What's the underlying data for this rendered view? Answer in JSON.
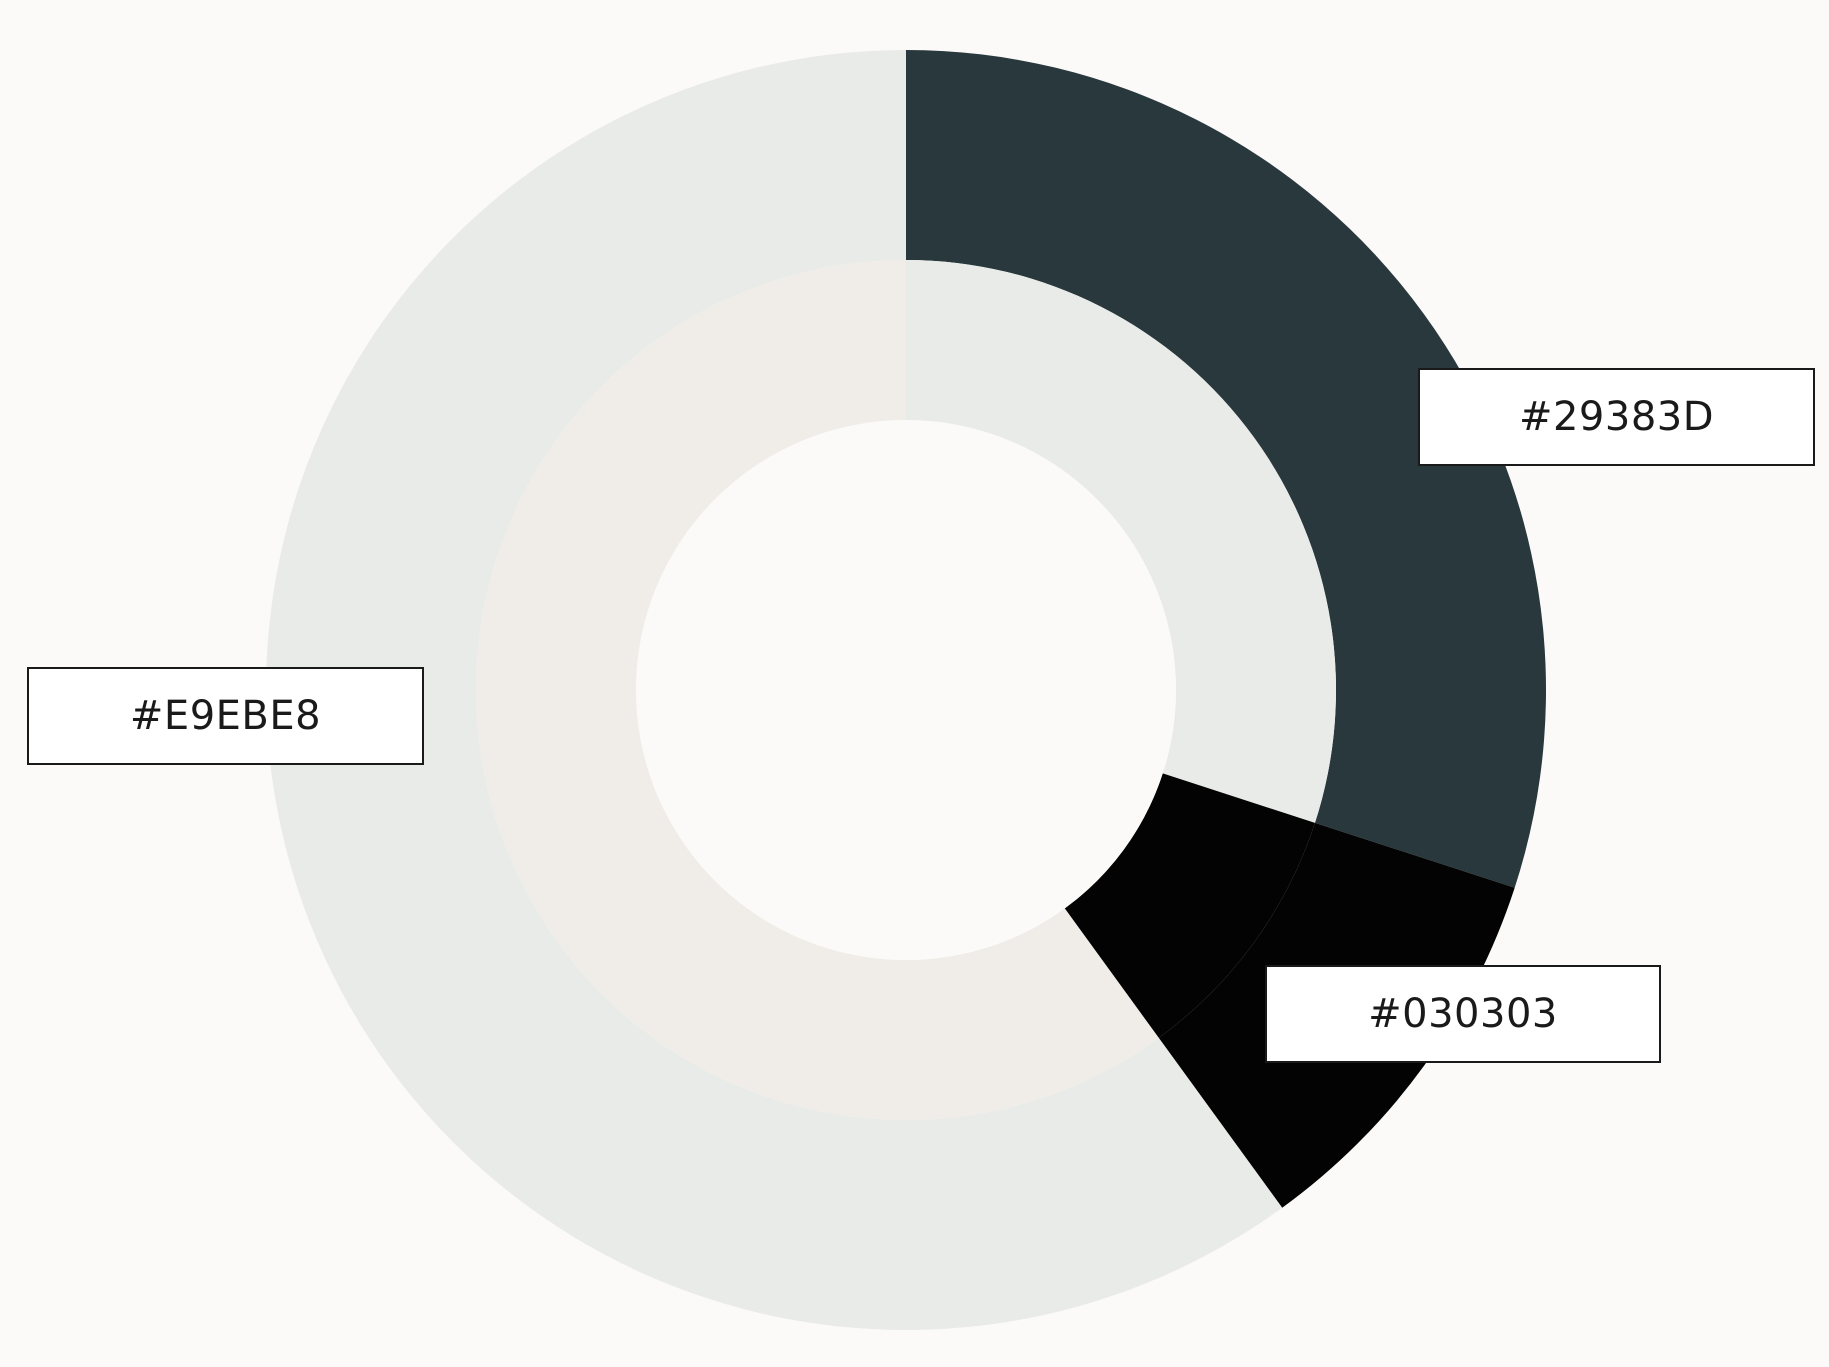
{
  "chart_data": {
    "type": "pie",
    "variant": "nested-donut",
    "title": "",
    "rings": [
      {
        "ring": "outer",
        "slices": [
          {
            "label": "#29383D",
            "value": 30,
            "color": "#29383D"
          },
          {
            "label": "#030303",
            "value": 10,
            "color": "#030303"
          },
          {
            "label": "#E9EBE8",
            "value": 60,
            "color": "#E9EBE8"
          }
        ]
      },
      {
        "ring": "inner",
        "slices": [
          {
            "value": 30,
            "color": "#E9EBE8"
          },
          {
            "value": 10,
            "color": "#030303"
          },
          {
            "value": 60,
            "color": "#F0EDE8"
          }
        ]
      }
    ],
    "background": "#FBFAF8"
  }
}
